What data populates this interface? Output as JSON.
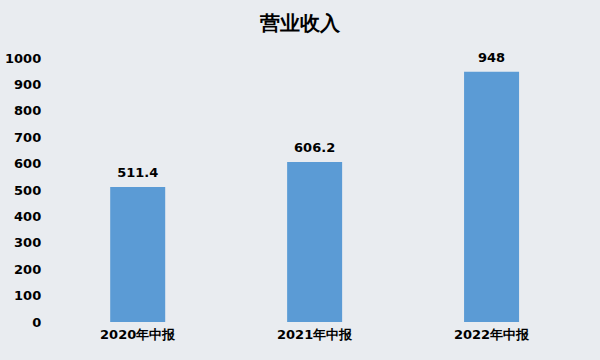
{
  "chart_data": {
    "type": "bar",
    "title": "营业收入",
    "categories": [
      "2020年中报",
      "2021年中报",
      "2022年中报"
    ],
    "values": [
      511.4,
      606.2,
      948
    ],
    "color": "#5b9bd5",
    "ylim": [
      0,
      1000
    ],
    "yticks": [
      0,
      100,
      200,
      300,
      400,
      500,
      600,
      700,
      800,
      900,
      1000
    ],
    "grid": false,
    "data_labels": true
  }
}
